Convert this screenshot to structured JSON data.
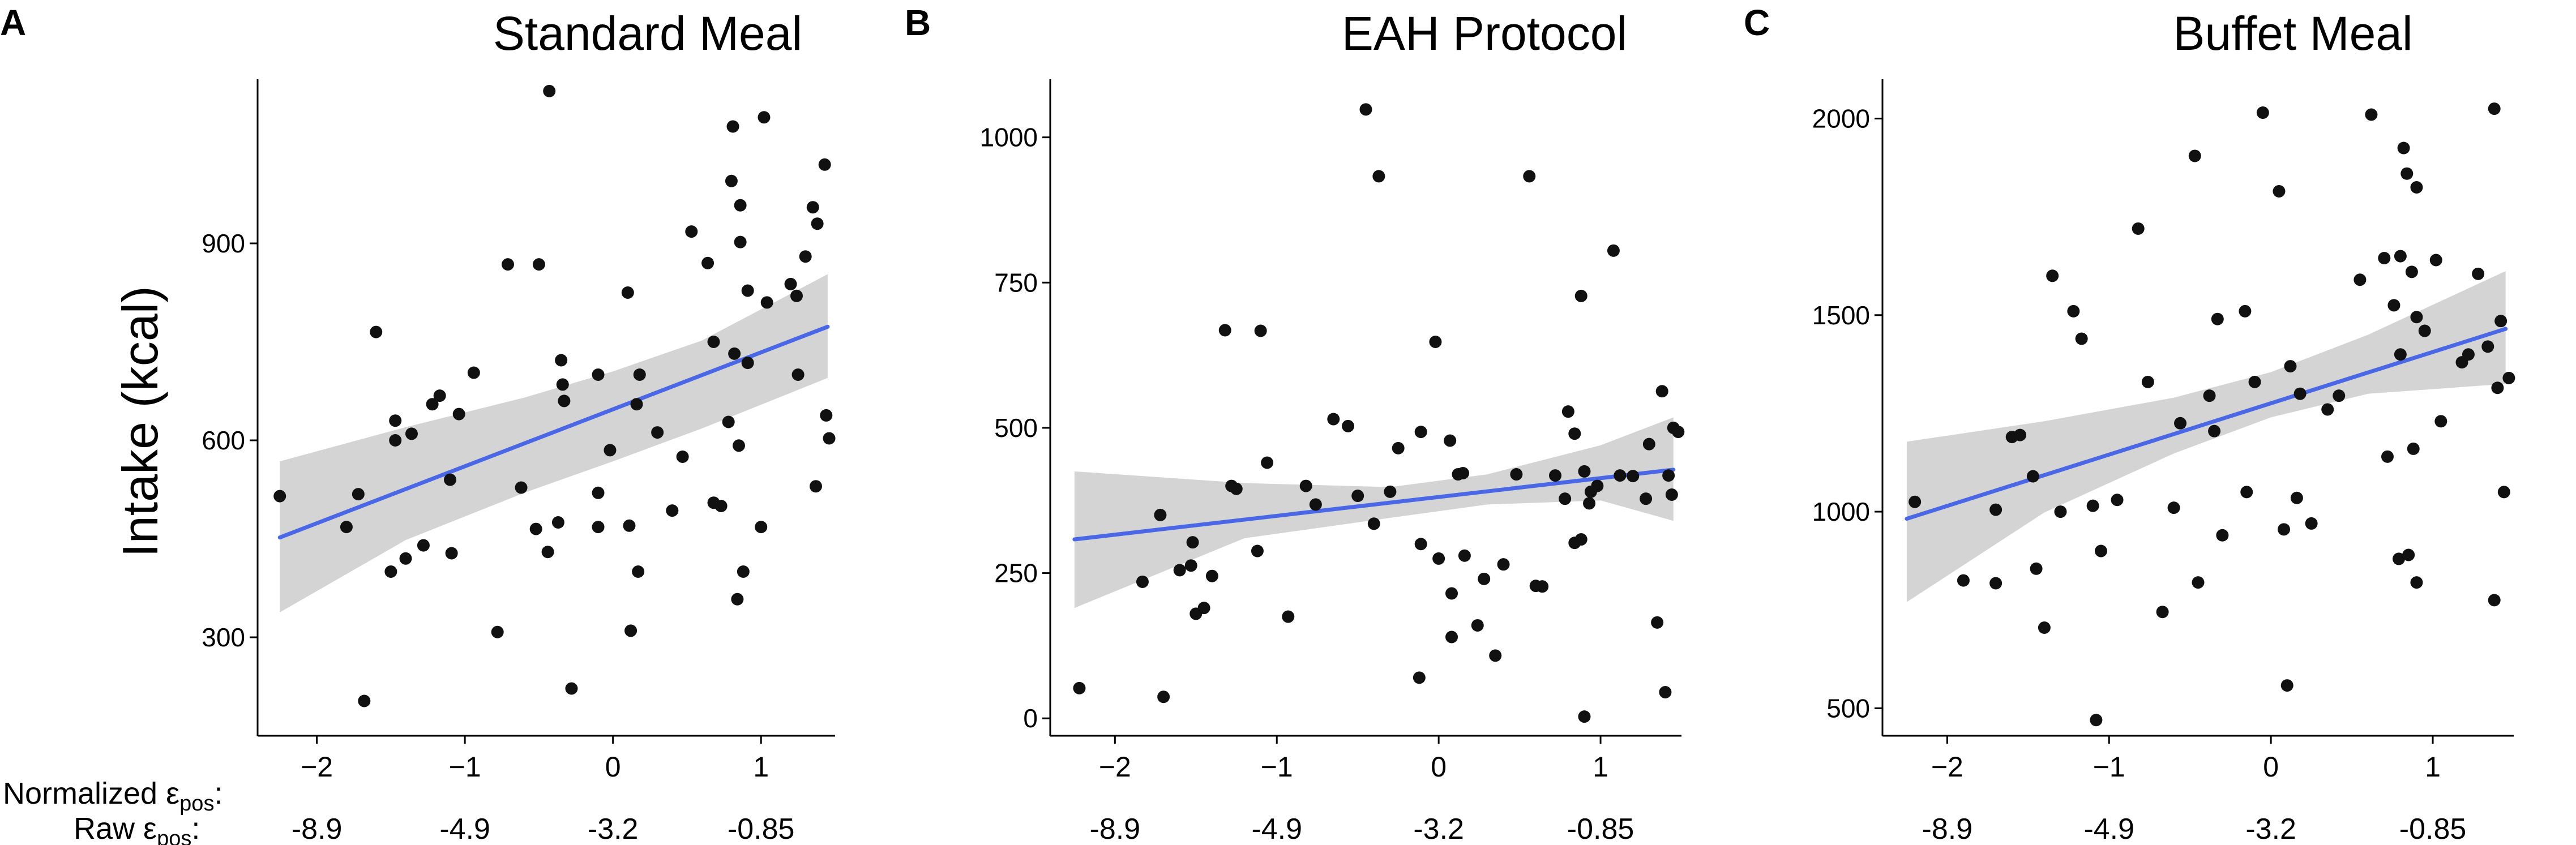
{
  "figure": {
    "ylabel": "Intake (kcal)",
    "normalized_label": "Normalized ε",
    "raw_label": "Raw ε",
    "label_subscript": "pos",
    "label_colon": ":",
    "raw_tick_labels": [
      "-8.9",
      "-4.9",
      "-3.2",
      "-0.85"
    ],
    "colors": {
      "points": "#111111",
      "fit_line": "#4a67e6",
      "confidence_band": "#d4d4d4",
      "axis": "#000000"
    }
  },
  "chart_data": [
    {
      "type": "scatter",
      "panel_letter": "A",
      "title": "Standard Meal",
      "xlabel": "Normalized ε_pos",
      "ylabel": "Intake (kcal)",
      "xlim": [
        -2.4,
        1.5
      ],
      "ylim": [
        150,
        1150
      ],
      "xticks": [
        -2,
        -1,
        0,
        1
      ],
      "xtick_labels": [
        "−2",
        "−1",
        "0",
        "1"
      ],
      "yticks": [
        300,
        600,
        900
      ],
      "ytick_labels": [
        "300",
        "600",
        "900"
      ],
      "raw_tick_labels": [
        "-8.9",
        "-4.9",
        "-3.2",
        "-0.85"
      ],
      "fit": {
        "x": [
          -2.25,
          1.45
        ],
        "y": [
          452,
          773
        ]
      },
      "band": {
        "x": [
          -2.25,
          -1.4,
          -0.6,
          0.0,
          0.6,
          1.45
        ],
        "upper": [
          568,
          620,
          665,
          705,
          752,
          853
        ],
        "lower": [
          338,
          448,
          520,
          568,
          618,
          695
        ]
      },
      "points": [
        [
          -2.25,
          515
        ],
        [
          -1.8,
          468
        ],
        [
          -1.72,
          518
        ],
        [
          -1.68,
          203
        ],
        [
          -1.6,
          765
        ],
        [
          -1.5,
          400
        ],
        [
          -1.47,
          630
        ],
        [
          -1.47,
          600
        ],
        [
          -1.4,
          420
        ],
        [
          -1.36,
          610
        ],
        [
          -1.28,
          440
        ],
        [
          -1.22,
          655
        ],
        [
          -1.17,
          668
        ],
        [
          -1.1,
          540
        ],
        [
          -1.09,
          428
        ],
        [
          -1.04,
          640
        ],
        [
          -0.94,
          703
        ],
        [
          -0.78,
          308
        ],
        [
          -0.71,
          868
        ],
        [
          -0.62,
          528
        ],
        [
          -0.52,
          465
        ],
        [
          -0.5,
          868
        ],
        [
          -0.44,
          430
        ],
        [
          -0.43,
          1132
        ],
        [
          -0.37,
          475
        ],
        [
          -0.35,
          722
        ],
        [
          -0.34,
          685
        ],
        [
          -0.33,
          660
        ],
        [
          -0.28,
          222
        ],
        [
          -0.1,
          468
        ],
        [
          -0.1,
          520
        ],
        [
          -0.1,
          700
        ],
        [
          -0.02,
          585
        ],
        [
          0.1,
          825
        ],
        [
          0.11,
          470
        ],
        [
          0.12,
          310
        ],
        [
          0.16,
          655
        ],
        [
          0.17,
          400
        ],
        [
          0.18,
          700
        ],
        [
          0.3,
          612
        ],
        [
          0.4,
          493
        ],
        [
          0.47,
          575
        ],
        [
          0.53,
          918
        ],
        [
          0.64,
          870
        ],
        [
          0.68,
          505
        ],
        [
          0.68,
          750
        ],
        [
          0.73,
          500
        ],
        [
          0.78,
          628
        ],
        [
          0.81,
          1078
        ],
        [
          0.8,
          995
        ],
        [
          0.82,
          732
        ],
        [
          0.84,
          358
        ],
        [
          0.85,
          592
        ],
        [
          0.86,
          902
        ],
        [
          0.86,
          958
        ],
        [
          0.88,
          400
        ],
        [
          0.91,
          828
        ],
        [
          0.91,
          718
        ],
        [
          1.0,
          468
        ],
        [
          1.02,
          1092
        ],
        [
          1.04,
          810
        ],
        [
          1.2,
          838
        ],
        [
          1.24,
          820
        ],
        [
          1.25,
          700
        ],
        [
          1.3,
          880
        ],
        [
          1.35,
          955
        ],
        [
          1.37,
          530
        ],
        [
          1.38,
          930
        ],
        [
          1.43,
          1020
        ],
        [
          1.44,
          638
        ],
        [
          1.46,
          603
        ]
      ]
    },
    {
      "type": "scatter",
      "panel_letter": "B",
      "title": "EAH Protocol",
      "xlabel": "Normalized ε_pos",
      "ylabel": "",
      "xlim": [
        -2.4,
        1.5
      ],
      "ylim": [
        -30,
        1100
      ],
      "xticks": [
        -2,
        -1,
        0,
        1
      ],
      "xtick_labels": [
        "−2",
        "−1",
        "0",
        "1"
      ],
      "yticks": [
        0,
        250,
        500,
        750,
        1000
      ],
      "ytick_labels": [
        "0",
        "250",
        "500",
        "750",
        "1000"
      ],
      "raw_tick_labels": [
        "-8.9",
        "-4.9",
        "-3.2",
        "-0.85"
      ],
      "fit": {
        "x": [
          -2.25,
          1.45
        ],
        "y": [
          308,
          428
        ]
      },
      "band": {
        "x": [
          -2.25,
          -1.2,
          -0.3,
          0.3,
          1.0,
          1.45
        ],
        "upper": [
          425,
          405,
          398,
          420,
          470,
          518
        ],
        "lower": [
          190,
          310,
          345,
          368,
          375,
          340
        ]
      },
      "points": [
        [
          -2.22,
          52
        ],
        [
          -1.83,
          235
        ],
        [
          -1.72,
          350
        ],
        [
          -1.7,
          37
        ],
        [
          -1.6,
          255
        ],
        [
          -1.5,
          180
        ],
        [
          -1.52,
          303
        ],
        [
          -1.53,
          263
        ],
        [
          -1.45,
          190
        ],
        [
          -1.4,
          245
        ],
        [
          -1.32,
          668
        ],
        [
          -1.28,
          400
        ],
        [
          -1.25,
          395
        ],
        [
          -1.12,
          288
        ],
        [
          -1.1,
          667
        ],
        [
          -1.06,
          440
        ],
        [
          -0.93,
          175
        ],
        [
          -0.82,
          400
        ],
        [
          -0.76,
          368
        ],
        [
          -0.65,
          515
        ],
        [
          -0.56,
          503
        ],
        [
          -0.5,
          383
        ],
        [
          -0.45,
          1048
        ],
        [
          -0.4,
          335
        ],
        [
          -0.37,
          933
        ],
        [
          -0.3,
          390
        ],
        [
          -0.25,
          465
        ],
        [
          -0.12,
          70
        ],
        [
          -0.11,
          300
        ],
        [
          -0.11,
          493
        ],
        [
          -0.02,
          648
        ],
        [
          0.0,
          275
        ],
        [
          0.07,
          478
        ],
        [
          0.08,
          140
        ],
        [
          0.08,
          215
        ],
        [
          0.12,
          420
        ],
        [
          0.15,
          422
        ],
        [
          0.16,
          280
        ],
        [
          0.24,
          160
        ],
        [
          0.28,
          240
        ],
        [
          0.35,
          108
        ],
        [
          0.4,
          265
        ],
        [
          0.48,
          420
        ],
        [
          0.56,
          933
        ],
        [
          0.6,
          228
        ],
        [
          0.64,
          227
        ],
        [
          0.72,
          418
        ],
        [
          0.78,
          378
        ],
        [
          0.8,
          528
        ],
        [
          0.84,
          490
        ],
        [
          0.84,
          302
        ],
        [
          0.88,
          308
        ],
        [
          0.88,
          727
        ],
        [
          0.9,
          3
        ],
        [
          0.9,
          425
        ],
        [
          0.93,
          370
        ],
        [
          0.94,
          390
        ],
        [
          0.98,
          400
        ],
        [
          1.08,
          805
        ],
        [
          1.12,
          418
        ],
        [
          1.2,
          417
        ],
        [
          1.28,
          378
        ],
        [
          1.3,
          472
        ],
        [
          1.35,
          165
        ],
        [
          1.38,
          563
        ],
        [
          1.4,
          45
        ],
        [
          1.42,
          418
        ],
        [
          1.44,
          385
        ],
        [
          1.45,
          500
        ],
        [
          1.48,
          493
        ]
      ]
    },
    {
      "type": "scatter",
      "panel_letter": "C",
      "title": "Buffet Meal",
      "xlabel": "Normalized ε_pos",
      "ylabel": "",
      "xlim": [
        -2.4,
        1.5
      ],
      "ylim": [
        430,
        2100
      ],
      "xticks": [
        -2,
        -1,
        0,
        1
      ],
      "xtick_labels": [
        "−2",
        "−1",
        "0",
        "1"
      ],
      "yticks": [
        500,
        1000,
        1500,
        2000
      ],
      "ytick_labels": [
        "500",
        "1000",
        "1500",
        "2000"
      ],
      "raw_tick_labels": [
        "-8.9",
        "-4.9",
        "-3.2",
        "-0.85"
      ],
      "fit": {
        "x": [
          -2.25,
          1.45
        ],
        "y": [
          982,
          1465
        ]
      },
      "band": {
        "x": [
          -2.25,
          -1.4,
          -0.6,
          0.0,
          0.6,
          1.45
        ],
        "upper": [
          1178,
          1230,
          1290,
          1355,
          1450,
          1612
        ],
        "lower": [
          770,
          998,
          1148,
          1240,
          1300,
          1325
        ]
      },
      "points": [
        [
          -2.2,
          1025
        ],
        [
          -1.9,
          825
        ],
        [
          -1.7,
          818
        ],
        [
          -1.7,
          1005
        ],
        [
          -1.6,
          1190
        ],
        [
          -1.55,
          1195
        ],
        [
          -1.47,
          1090
        ],
        [
          -1.45,
          855
        ],
        [
          -1.4,
          705
        ],
        [
          -1.35,
          1600
        ],
        [
          -1.3,
          1000
        ],
        [
          -1.22,
          1510
        ],
        [
          -1.17,
          1440
        ],
        [
          -1.1,
          1015
        ],
        [
          -1.08,
          470
        ],
        [
          -1.05,
          900
        ],
        [
          -0.95,
          1030
        ],
        [
          -0.82,
          1720
        ],
        [
          -0.76,
          1330
        ],
        [
          -0.67,
          745
        ],
        [
          -0.6,
          1010
        ],
        [
          -0.56,
          1225
        ],
        [
          -0.47,
          1905
        ],
        [
          -0.45,
          820
        ],
        [
          -0.38,
          1295
        ],
        [
          -0.35,
          1205
        ],
        [
          -0.33,
          1490
        ],
        [
          -0.3,
          940
        ],
        [
          -0.16,
          1510
        ],
        [
          -0.15,
          1050
        ],
        [
          -0.1,
          1330
        ],
        [
          -0.05,
          2015
        ],
        [
          0.05,
          1815
        ],
        [
          0.08,
          955
        ],
        [
          0.1,
          558
        ],
        [
          0.12,
          1370
        ],
        [
          0.16,
          1035
        ],
        [
          0.18,
          1300
        ],
        [
          0.25,
          970
        ],
        [
          0.35,
          1260
        ],
        [
          0.42,
          1295
        ],
        [
          0.55,
          1590
        ],
        [
          0.62,
          2010
        ],
        [
          0.7,
          1645
        ],
        [
          0.72,
          1140
        ],
        [
          0.76,
          1525
        ],
        [
          0.79,
          880
        ],
        [
          0.8,
          1400
        ],
        [
          0.8,
          1650
        ],
        [
          0.82,
          1925
        ],
        [
          0.84,
          1860
        ],
        [
          0.85,
          890
        ],
        [
          0.87,
          1610
        ],
        [
          0.88,
          1160
        ],
        [
          0.9,
          1825
        ],
        [
          0.9,
          1495
        ],
        [
          0.9,
          820
        ],
        [
          0.95,
          1460
        ],
        [
          1.02,
          1640
        ],
        [
          1.05,
          1230
        ],
        [
          1.18,
          1380
        ],
        [
          1.22,
          1400
        ],
        [
          1.28,
          1605
        ],
        [
          1.34,
          1420
        ],
        [
          1.38,
          2025
        ],
        [
          1.38,
          775
        ],
        [
          1.4,
          1315
        ],
        [
          1.42,
          1485
        ],
        [
          1.44,
          1050
        ],
        [
          1.47,
          1340
        ]
      ]
    }
  ]
}
